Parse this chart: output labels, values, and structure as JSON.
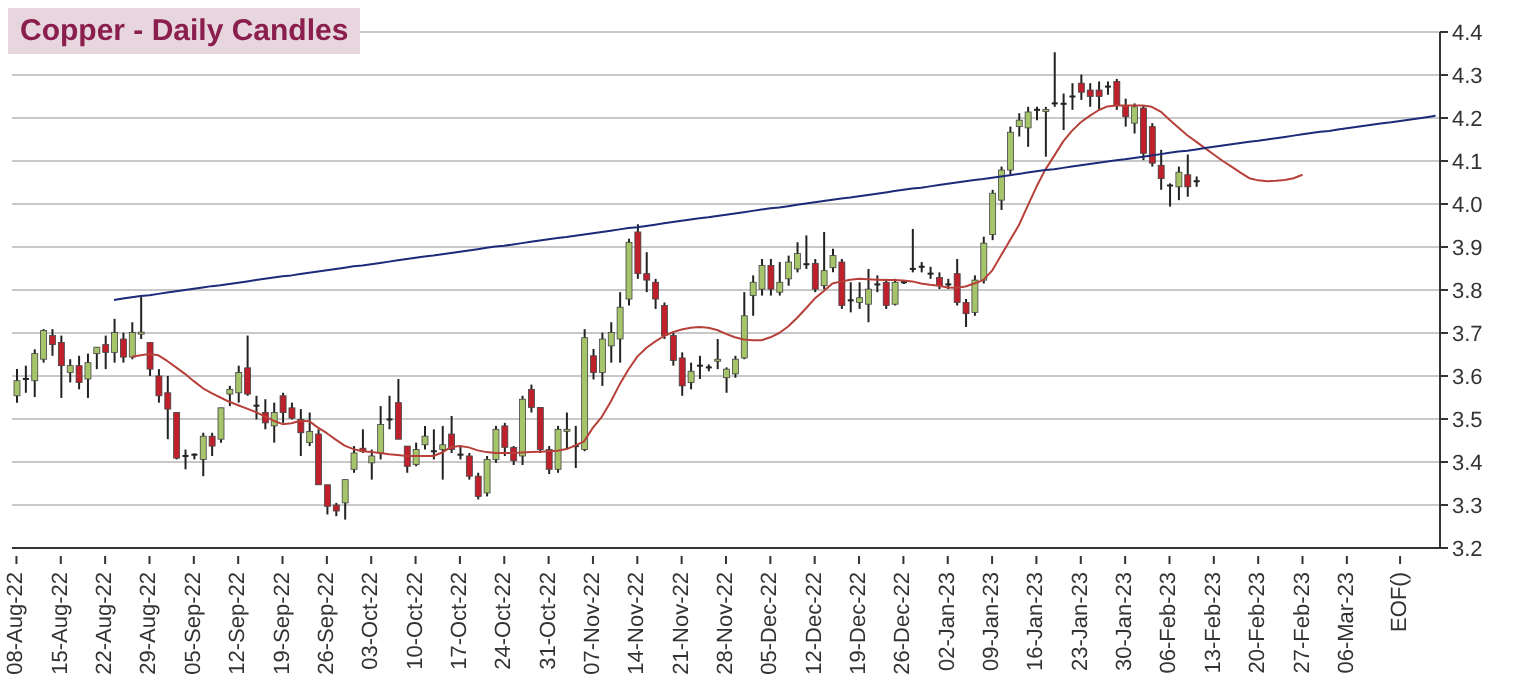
{
  "chart_data": {
    "type": "candlestick",
    "title": "Copper - Daily Candles",
    "categories": [
      "08-Aug-22",
      null,
      null,
      null,
      null,
      "15-Aug-22",
      null,
      null,
      null,
      null,
      "22-Aug-22",
      null,
      null,
      null,
      null,
      "29-Aug-22",
      null,
      null,
      null,
      null,
      "05-Sep-22",
      null,
      null,
      null,
      null,
      "12-Sep-22",
      null,
      null,
      null,
      null,
      "19-Sep-22",
      null,
      null,
      null,
      null,
      "26-Sep-22",
      null,
      null,
      null,
      null,
      "03-Oct-22",
      null,
      null,
      null,
      null,
      "10-Oct-22",
      null,
      null,
      null,
      null,
      "17-Oct-22",
      null,
      null,
      null,
      null,
      "24-Oct-22",
      null,
      null,
      null,
      null,
      "31-Oct-22",
      null,
      null,
      null,
      null,
      "07-Nov-22",
      null,
      null,
      null,
      null,
      "14-Nov-22",
      null,
      null,
      null,
      null,
      "21-Nov-22",
      null,
      null,
      null,
      null,
      "28-Nov-22",
      null,
      null,
      null,
      null,
      "05-Dec-22",
      null,
      null,
      null,
      null,
      "12-Dec-22",
      null,
      null,
      null,
      null,
      "19-Dec-22",
      null,
      null,
      null,
      null,
      "26-Dec-22",
      null,
      null,
      null,
      null,
      "02-Jan-23",
      null,
      null,
      null,
      null,
      "09-Jan-23",
      null,
      null,
      null,
      null,
      "16-Jan-23",
      null,
      null,
      null,
      null,
      "23-Jan-23",
      null,
      null,
      null,
      null,
      "30-Jan-23",
      null,
      null,
      null,
      null,
      "06-Feb-23",
      null,
      null,
      null,
      null,
      "13-Feb-23",
      null,
      null,
      null,
      null,
      "20-Feb-23",
      null,
      null,
      null,
      null,
      "27-Feb-23",
      null,
      null,
      null,
      null,
      "06-Mar-23",
      null,
      null,
      null,
      null,
      null,
      "EOF()",
      null,
      null,
      null,
      null
    ],
    "ohlc": [
      [
        3.554,
        3.616,
        3.538,
        3.589
      ],
      [
        3.593,
        3.624,
        3.561,
        3.593
      ],
      [
        3.589,
        3.662,
        3.551,
        3.652
      ],
      [
        3.639,
        3.709,
        3.631,
        3.706
      ],
      [
        3.694,
        3.709,
        3.647,
        3.673
      ],
      [
        3.678,
        3.694,
        3.549,
        3.624
      ],
      [
        3.608,
        3.639,
        3.585,
        3.624
      ],
      [
        3.624,
        3.647,
        3.569,
        3.585
      ],
      [
        3.593,
        3.652,
        3.549,
        3.631
      ],
      [
        3.652,
        3.667,
        3.616,
        3.667
      ],
      [
        3.673,
        3.694,
        3.616,
        3.655
      ],
      [
        3.655,
        3.733,
        3.631,
        3.701
      ],
      [
        3.686,
        3.701,
        3.631,
        3.644
      ],
      [
        3.644,
        3.725,
        3.639,
        3.701
      ],
      [
        3.699,
        3.784,
        3.686,
        3.702
      ],
      [
        3.678,
        3.678,
        3.6,
        3.616
      ],
      [
        3.6,
        3.616,
        3.538,
        3.554
      ],
      [
        3.561,
        3.6,
        3.453,
        3.523
      ],
      [
        3.515,
        3.515,
        3.406,
        3.409
      ],
      [
        3.414,
        3.429,
        3.383,
        3.414
      ],
      [
        3.417,
        3.42,
        3.406,
        3.417
      ],
      [
        3.406,
        3.468,
        3.367,
        3.46
      ],
      [
        3.46,
        3.468,
        3.414,
        3.437
      ],
      [
        3.453,
        3.526,
        3.445,
        3.526
      ],
      [
        3.558,
        3.577,
        3.53,
        3.569
      ],
      [
        3.561,
        3.624,
        3.538,
        3.608
      ],
      [
        3.619,
        3.694,
        3.554,
        3.558
      ],
      [
        3.531,
        3.554,
        3.499,
        3.531
      ],
      [
        3.515,
        3.546,
        3.476,
        3.491
      ],
      [
        3.484,
        3.538,
        3.445,
        3.515
      ],
      [
        3.554,
        3.561,
        3.491,
        3.515
      ],
      [
        3.526,
        3.538,
        3.499,
        3.502
      ],
      [
        3.499,
        3.523,
        3.414,
        3.468
      ],
      [
        3.445,
        3.515,
        3.437,
        3.471
      ],
      [
        3.465,
        3.476,
        3.347,
        3.347
      ],
      [
        3.347,
        3.347,
        3.278,
        3.297
      ],
      [
        3.3,
        3.305,
        3.274,
        3.286
      ],
      [
        3.305,
        3.359,
        3.266,
        3.359
      ],
      [
        3.383,
        3.437,
        3.375,
        3.421
      ],
      [
        3.432,
        3.476,
        3.421,
        3.425
      ],
      [
        3.398,
        3.429,
        3.359,
        3.414
      ],
      [
        3.421,
        3.53,
        3.406,
        3.487
      ],
      [
        3.499,
        3.554,
        3.476,
        3.499
      ],
      [
        3.538,
        3.593,
        3.453,
        3.453
      ],
      [
        3.437,
        3.437,
        3.375,
        3.39
      ],
      [
        3.394,
        3.445,
        3.39,
        3.429
      ],
      [
        3.44,
        3.484,
        3.429,
        3.46
      ],
      [
        3.425,
        3.476,
        3.406,
        3.425
      ],
      [
        3.429,
        3.484,
        3.359,
        3.44
      ],
      [
        3.465,
        3.507,
        3.421,
        3.429
      ],
      [
        3.417,
        3.437,
        3.406,
        3.417
      ],
      [
        3.414,
        3.421,
        3.359,
        3.367
      ],
      [
        3.367,
        3.375,
        3.313,
        3.32
      ],
      [
        3.328,
        3.414,
        3.32,
        3.406
      ],
      [
        3.406,
        3.484,
        3.398,
        3.476
      ],
      [
        3.484,
        3.491,
        3.414,
        3.434
      ],
      [
        3.434,
        3.437,
        3.393,
        3.403
      ],
      [
        3.414,
        3.554,
        3.393,
        3.546
      ],
      [
        3.569,
        3.58,
        3.515,
        3.527
      ],
      [
        3.527,
        3.527,
        3.421,
        3.429
      ],
      [
        3.429,
        3.437,
        3.372,
        3.383
      ],
      [
        3.383,
        3.484,
        3.375,
        3.476
      ],
      [
        3.473,
        3.515,
        3.429,
        3.476
      ],
      [
        3.437,
        3.484,
        3.386,
        3.437
      ],
      [
        3.429,
        3.709,
        3.425,
        3.689
      ],
      [
        3.647,
        3.663,
        3.592,
        3.608
      ],
      [
        3.608,
        3.701,
        3.577,
        3.686
      ],
      [
        3.67,
        3.725,
        3.631,
        3.701
      ],
      [
        3.686,
        3.795,
        3.631,
        3.76
      ],
      [
        3.779,
        3.919,
        3.764,
        3.911
      ],
      [
        3.935,
        3.953,
        3.826,
        3.838
      ],
      [
        3.838,
        3.888,
        3.795,
        3.823
      ],
      [
        3.818,
        3.826,
        3.756,
        3.779
      ],
      [
        3.764,
        3.771,
        3.686,
        3.694
      ],
      [
        3.694,
        3.701,
        3.624,
        3.636
      ],
      [
        3.642,
        3.655,
        3.554,
        3.577
      ],
      [
        3.585,
        3.631,
        3.569,
        3.611
      ],
      [
        3.624,
        3.647,
        3.593,
        3.624
      ],
      [
        3.62,
        3.627,
        3.611,
        3.62
      ],
      [
        3.636,
        3.686,
        3.616,
        3.639
      ],
      [
        3.596,
        3.62,
        3.561,
        3.616
      ],
      [
        3.605,
        3.647,
        3.596,
        3.639
      ],
      [
        3.642,
        3.795,
        3.639,
        3.74
      ],
      [
        3.787,
        3.834,
        3.74,
        3.818
      ],
      [
        3.802,
        3.872,
        3.787,
        3.857
      ],
      [
        3.857,
        3.872,
        3.787,
        3.802
      ],
      [
        3.795,
        3.865,
        3.787,
        3.818
      ],
      [
        3.826,
        3.88,
        3.81,
        3.865
      ],
      [
        3.849,
        3.911,
        3.841,
        3.885
      ],
      [
        3.86,
        3.927,
        3.849,
        3.86
      ],
      [
        3.862,
        3.872,
        3.795,
        3.802
      ],
      [
        3.81,
        3.935,
        3.802,
        3.845
      ],
      [
        3.852,
        3.896,
        3.841,
        3.88
      ],
      [
        3.865,
        3.872,
        3.756,
        3.764
      ],
      [
        3.776,
        3.818,
        3.748,
        3.776
      ],
      [
        3.771,
        3.818,
        3.756,
        3.782
      ],
      [
        3.767,
        3.849,
        3.725,
        3.802
      ],
      [
        3.813,
        3.834,
        3.795,
        3.813
      ],
      [
        3.818,
        3.826,
        3.756,
        3.764
      ],
      [
        3.767,
        3.826,
        3.764,
        3.818
      ],
      [
        3.818,
        3.822,
        3.814,
        3.818
      ],
      [
        3.849,
        3.942,
        3.841,
        3.849
      ],
      [
        3.854,
        3.865,
        3.841,
        3.854
      ],
      [
        3.838,
        3.854,
        3.826,
        3.838
      ],
      [
        3.829,
        3.841,
        3.802,
        3.81
      ],
      [
        3.813,
        3.826,
        3.802,
        3.813
      ],
      [
        3.838,
        3.872,
        3.764,
        3.771
      ],
      [
        3.771,
        3.779,
        3.714,
        3.745
      ],
      [
        3.748,
        3.834,
        3.74,
        3.823
      ],
      [
        3.823,
        3.924,
        3.815,
        3.909
      ],
      [
        3.929,
        4.033,
        3.916,
        4.025
      ],
      [
        4.009,
        4.087,
        3.986,
        4.079
      ],
      [
        4.079,
        4.18,
        4.068,
        4.167
      ],
      [
        4.18,
        4.211,
        4.157,
        4.195
      ],
      [
        4.177,
        4.226,
        4.133,
        4.214
      ],
      [
        4.219,
        4.226,
        4.195,
        4.219
      ],
      [
        4.218,
        4.226,
        4.11,
        4.22
      ],
      [
        4.234,
        4.353,
        4.226,
        4.234
      ],
      [
        4.233,
        4.257,
        4.172,
        4.233
      ],
      [
        4.25,
        4.281,
        4.219,
        4.25
      ],
      [
        4.281,
        4.301,
        4.242,
        4.26
      ],
      [
        4.265,
        4.281,
        4.226,
        4.25
      ],
      [
        4.265,
        4.285,
        4.219,
        4.25
      ],
      [
        4.273,
        4.285,
        4.254,
        4.273
      ],
      [
        4.285,
        4.291,
        4.219,
        4.229
      ],
      [
        4.229,
        4.245,
        4.18,
        4.203
      ],
      [
        4.188,
        4.234,
        4.164,
        4.226
      ],
      [
        4.223,
        4.229,
        4.102,
        4.118
      ],
      [
        4.18,
        4.188,
        4.087,
        4.095
      ],
      [
        4.09,
        4.126,
        4.033,
        4.059
      ],
      [
        4.043,
        4.048,
        3.994,
        4.043
      ],
      [
        4.04,
        4.087,
        4.009,
        4.074
      ],
      [
        4.068,
        4.115,
        4.017,
        4.04
      ],
      [
        4.053,
        4.064,
        4.04,
        4.053
      ],
      null,
      null,
      null,
      null,
      null,
      null,
      null,
      null,
      null,
      null,
      null,
      null,
      null,
      null,
      null,
      null,
      null,
      null,
      null,
      null,
      null,
      null,
      null,
      null,
      null,
      null,
      null
    ],
    "series": [
      {
        "type": "line",
        "color": "#b8403a",
        "values": [
          null,
          null,
          null,
          null,
          null,
          null,
          null,
          null,
          null,
          null,
          null,
          null,
          null,
          3.645,
          3.648,
          3.651,
          3.648,
          3.635,
          3.62,
          3.605,
          3.588,
          3.572,
          3.56,
          3.55,
          3.54,
          3.532,
          3.524,
          3.516,
          3.506,
          3.496,
          3.488,
          3.49,
          3.496,
          3.495,
          3.48,
          3.467,
          3.452,
          3.438,
          3.43,
          3.425,
          3.423,
          3.421,
          3.418,
          3.416,
          3.414,
          3.414,
          3.414,
          3.414,
          3.422,
          3.435,
          3.437,
          3.434,
          3.427,
          3.423,
          3.421,
          3.421,
          3.421,
          3.422,
          3.423,
          3.424,
          3.425,
          3.426,
          3.43,
          3.438,
          3.448,
          3.48,
          3.505,
          3.54,
          3.58,
          3.615,
          3.645,
          3.665,
          3.68,
          3.693,
          3.702,
          3.708,
          3.712,
          3.714,
          3.712,
          3.707,
          3.698,
          3.69,
          3.685,
          3.683,
          3.683,
          3.69,
          3.7,
          3.715,
          3.735,
          3.757,
          3.78,
          3.797,
          3.815,
          3.82,
          3.824,
          3.826,
          3.825,
          3.824,
          3.823,
          3.823,
          3.822,
          3.82,
          3.815,
          3.812,
          3.81,
          3.806,
          3.805,
          3.808,
          3.815,
          3.823,
          3.845,
          3.88,
          3.915,
          3.95,
          3.995,
          4.04,
          4.08,
          4.112,
          4.145,
          4.17,
          4.19,
          4.205,
          4.218,
          4.227,
          4.229,
          4.229,
          4.229,
          4.229,
          4.226,
          4.215,
          4.196,
          4.178,
          4.16,
          4.145,
          4.13,
          4.115,
          4.1,
          4.087,
          4.073,
          4.06,
          4.055,
          4.053,
          4.054,
          4.056,
          4.06,
          4.068,
          null,
          null,
          null,
          null,
          null,
          null,
          null,
          null,
          null,
          null,
          null,
          null,
          null,
          null,
          null
        ]
      },
      {
        "type": "line",
        "color": "#1c2a7a",
        "values": [
          null,
          null,
          null,
          null,
          null,
          null,
          null,
          null,
          null,
          null,
          null,
          3.777,
          3.78,
          3.783,
          3.786,
          3.788,
          3.791,
          3.794,
          3.797,
          3.8,
          3.803,
          3.806,
          3.809,
          3.811,
          3.814,
          3.817,
          3.82,
          3.823,
          3.826,
          3.829,
          3.832,
          3.834,
          3.837,
          3.84,
          3.843,
          3.846,
          3.849,
          3.852,
          3.855,
          3.857,
          3.86,
          3.863,
          3.866,
          3.869,
          3.872,
          3.875,
          3.878,
          3.88,
          3.883,
          3.886,
          3.889,
          3.892,
          3.895,
          3.898,
          3.901,
          3.903,
          3.906,
          3.909,
          3.912,
          3.915,
          3.918,
          3.921,
          3.923,
          3.926,
          3.929,
          3.932,
          3.935,
          3.938,
          3.941,
          3.944,
          3.946,
          3.949,
          3.952,
          3.955,
          3.958,
          3.961,
          3.964,
          3.967,
          3.969,
          3.972,
          3.975,
          3.978,
          3.981,
          3.984,
          3.987,
          3.99,
          3.992,
          3.995,
          3.998,
          4.001,
          4.004,
          4.007,
          4.01,
          4.013,
          4.015,
          4.018,
          4.021,
          4.024,
          4.027,
          4.03,
          4.033,
          4.036,
          4.038,
          4.041,
          4.044,
          4.047,
          4.05,
          4.053,
          4.056,
          4.058,
          4.061,
          4.064,
          4.067,
          4.07,
          4.073,
          4.076,
          4.079,
          4.081,
          4.084,
          4.087,
          4.09,
          4.093,
          4.096,
          4.099,
          4.102,
          4.104,
          4.107,
          4.11,
          4.113,
          4.116,
          4.119,
          4.122,
          4.124,
          4.127,
          4.13,
          4.133,
          4.136,
          4.139,
          4.142,
          4.145,
          4.147,
          4.15,
          4.153,
          4.156,
          4.159,
          4.162,
          4.165,
          4.168,
          4.17,
          4.173,
          4.176,
          4.179,
          4.182,
          4.185,
          4.188,
          4.19,
          4.193,
          4.196,
          4.199,
          4.202,
          4.205
        ]
      }
    ],
    "ylim": [
      3.2,
      4.4
    ],
    "yticks": [
      3.2,
      3.3,
      3.4,
      3.5,
      3.6,
      3.7,
      3.8,
      3.9,
      {
        "value": 4,
        "label": "4.0"
      },
      4.1,
      4.2,
      4.3,
      4.4
    ],
    "grid": "y"
  }
}
